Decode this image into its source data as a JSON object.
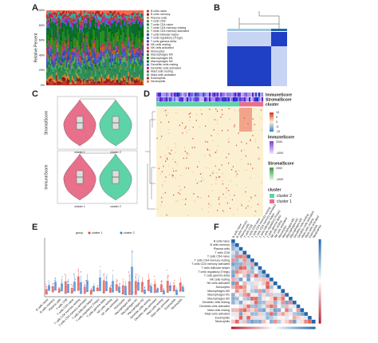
{
  "panels": {
    "a": {
      "label": "A",
      "y_axis": "Relative Percent",
      "yticks": [
        "100%",
        "80%",
        "60%",
        "40%",
        "20%",
        "0%"
      ],
      "legend": [
        "B cells naive",
        "B cells memory",
        "Plasma cells",
        "T cells CD8",
        "T cells CD4 naive",
        "T cells CD4 memory resting",
        "T cells CD4 memory activated",
        "T cells follicular helper",
        "T cells regulatory (Tregs)",
        "T cells gamma delta",
        "NK cells resting",
        "NK cells activated",
        "Monocytes",
        "Macrophages M0",
        "Macrophages M1",
        "Macrophages M2",
        "Dendritic cells resting",
        "Dendritic cells activated",
        "Mast cells resting",
        "Mast cells activated",
        "Eosinophils",
        "Neutrophils"
      ]
    },
    "b": {
      "label": "B"
    },
    "c": {
      "label": "C",
      "plots": [
        {
          "y_axis": "StromalScore",
          "categories": [
            "cluster 1",
            "cluster 2"
          ]
        },
        {
          "y_axis": "ImmuneScore",
          "categories": [
            "cluster 1",
            "cluster 2"
          ]
        }
      ]
    },
    "d": {
      "label": "D",
      "rows": [
        "ImmuneScore",
        "StromalScore",
        "cluster"
      ],
      "heat_ticks": [
        "10",
        "5",
        "0",
        "-5",
        "-10"
      ],
      "immune_title": "ImmuneScore",
      "immune_ticks": [
        "2000",
        "-1000"
      ],
      "stromal_title": "StromalScore",
      "stromal_ticks": [
        "2000",
        "-1000"
      ],
      "cluster_title": "cluster",
      "clusters": [
        "cluster 2",
        "cluster 1"
      ]
    },
    "e": {
      "label": "E",
      "legend_title": "group",
      "groups": [
        "cluster 1",
        "cluster 2"
      ]
    },
    "f": {
      "label": "F"
    }
  }
}
